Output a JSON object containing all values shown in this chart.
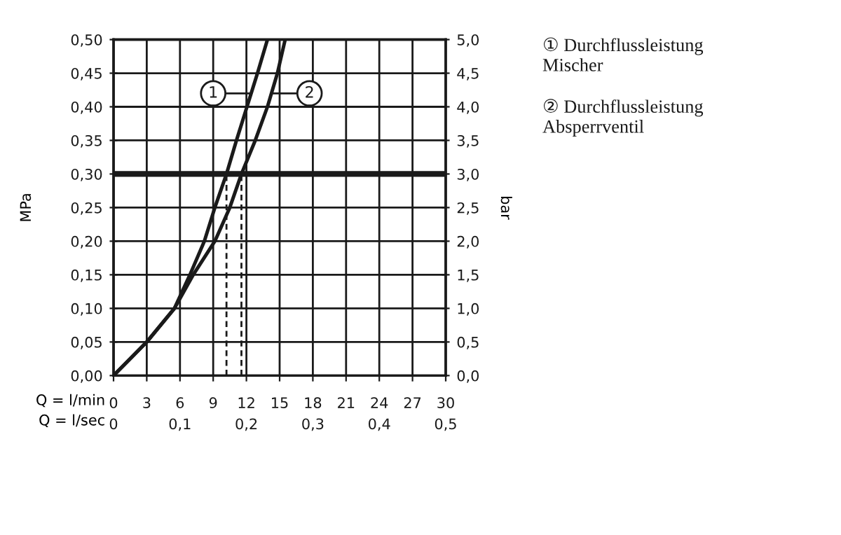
{
  "chart_data": {
    "type": "line",
    "xlabel": "Q = l/min",
    "x2label": "Q = l/sec",
    "ylabel": "MPa",
    "y2label": "bar",
    "x": [
      0,
      3,
      5.5,
      6.9,
      8.2,
      9.15,
      10.2,
      11.1,
      12.05,
      13.0,
      13.9
    ],
    "series": [
      {
        "color": "#1a1a1a",
        "values": [
          0,
          0.05,
          0.1,
          0.15,
          0.2,
          0.25,
          0.3,
          0.35,
          0.4,
          0.45,
          0.5
        ]
      },
      {
        "color": "#1a1a1a",
        "x": [
          0,
          3,
          5.5,
          7.2,
          9.15,
          10.5,
          11.55,
          12.8,
          13.9,
          14.8,
          15.5
        ],
        "values": [
          0,
          0.05,
          0.1,
          0.15,
          0.2,
          0.25,
          0.3,
          0.35,
          0.4,
          0.45,
          0.5
        ]
      }
    ],
    "xlim": [
      0,
      30
    ],
    "xticks": [
      0,
      3,
      6,
      9,
      12,
      15,
      18,
      21,
      24,
      27,
      30
    ],
    "x2lim": [
      0,
      0.5
    ],
    "x2ticks": [
      0,
      {
        "value": 0.1,
        "label": "0,1"
      },
      {
        "value": 0.2,
        "label": "0,2"
      },
      {
        "value": 0.3,
        "label": "0,3"
      },
      {
        "value": 0.4,
        "label": "0,4"
      },
      {
        "value": 0.5,
        "label": "0,5"
      }
    ],
    "ylim": [
      0,
      0.5
    ],
    "yticks": [
      {
        "value": 0,
        "label": "0,00"
      },
      {
        "value": 0.05,
        "label": "0,05"
      },
      {
        "value": 0.1,
        "label": "0,10"
      },
      {
        "value": 0.15,
        "label": "0,15"
      },
      {
        "value": 0.2,
        "label": "0,20"
      },
      {
        "value": 0.25,
        "label": "0,25"
      },
      {
        "value": 0.3,
        "label": "0,30"
      },
      {
        "value": 0.35,
        "label": "0,35"
      },
      {
        "value": 0.4,
        "label": "0,40"
      },
      {
        "value": 0.45,
        "label": "0,45"
      },
      {
        "value": 0.5,
        "label": "0,50"
      }
    ],
    "y2lim": [
      0,
      5
    ],
    "y2ticks": [
      {
        "value": 0,
        "label": "0,0"
      },
      {
        "value": 0.5,
        "label": "0,5"
      },
      {
        "value": 1,
        "label": "1,0"
      },
      {
        "value": 1.5,
        "label": "1,5"
      },
      {
        "value": 2,
        "label": "2,0"
      },
      {
        "value": 2.5,
        "label": "2,5"
      },
      {
        "value": 3,
        "label": "3,0"
      },
      {
        "value": 3.5,
        "label": "3,5"
      },
      {
        "value": 4,
        "label": "4,0"
      },
      {
        "value": 4.5,
        "label": "4,5"
      },
      {
        "value": 5,
        "label": "5,0"
      }
    ],
    "ref_lines": [
      {
        "axis": "y",
        "value": 0.3,
        "color": "#1a1a1a",
        "line_style": "solid"
      },
      {
        "axis": "x",
        "value": 10.2,
        "color": "#1a1a1a",
        "line_style": "dashed"
      },
      {
        "axis": "x",
        "value": 11.55,
        "color": "#1a1a1a",
        "line_style": "dashed"
      }
    ],
    "annotations": [
      {
        "text": "1",
        "x": 12.4,
        "y": 0.42
      },
      {
        "text": "2",
        "x": 14.3,
        "y": 0.42
      },
      "① Durchflussleistung\nMischer",
      "② Durchflussleistung\nAbsperrventil"
    ],
    "grid": true,
    "marker": "none",
    "line_style": "solid"
  }
}
